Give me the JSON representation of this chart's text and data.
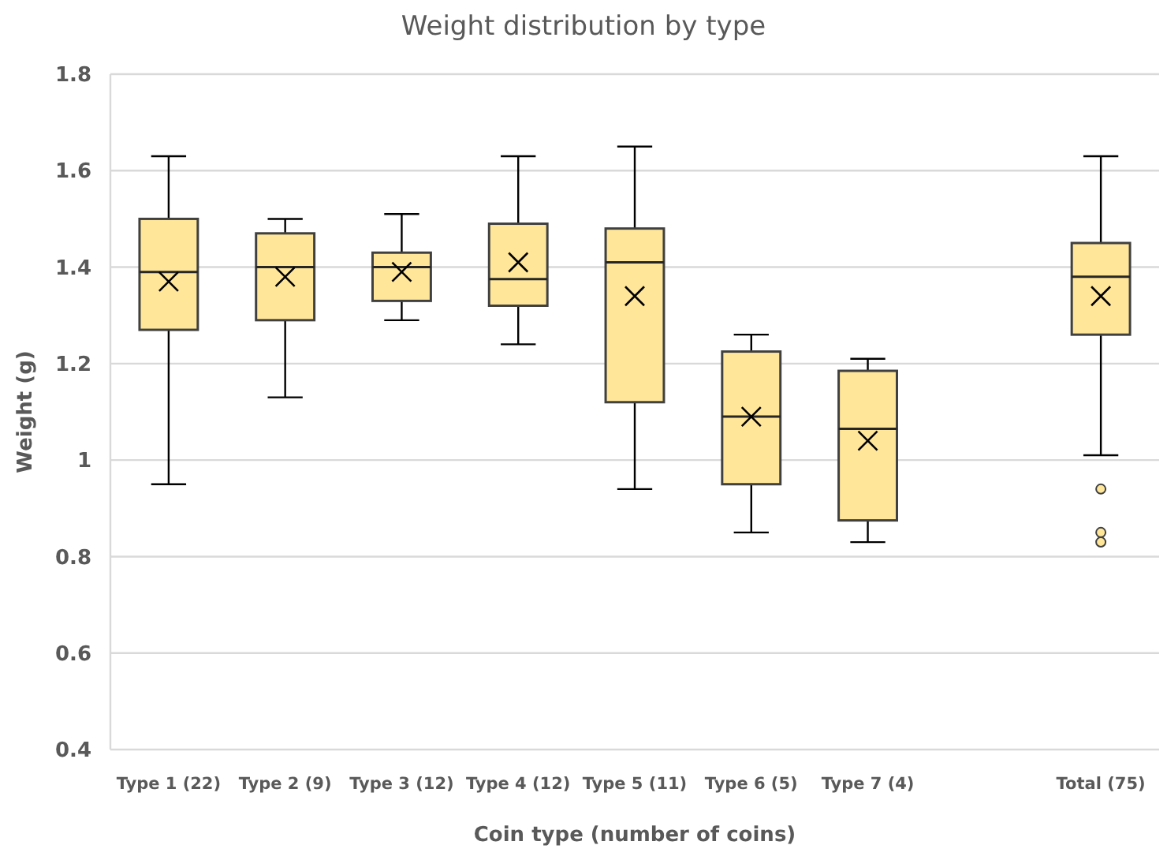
{
  "chart_data": {
    "type": "box",
    "title": "Weight distribution by type",
    "xlabel": "Coin type (number of coins)",
    "ylabel": "Weight (g)",
    "categories": [
      "Type 1 (22)",
      "Type 2 (9)",
      "Type 3 (12)",
      "Type 4 (12)",
      "Type 5 (11)",
      "Type 6 (5)",
      "Type 7 (4)",
      null,
      "Total (75)"
    ],
    "boxes": [
      {
        "low": 0.95,
        "q1": 1.27,
        "median": 1.39,
        "q3": 1.5,
        "high": 1.63,
        "mean": 1.37
      },
      {
        "low": 1.13,
        "q1": 1.29,
        "median": 1.4,
        "q3": 1.47,
        "high": 1.5,
        "mean": 1.38
      },
      {
        "low": 1.29,
        "q1": 1.33,
        "median": 1.4,
        "q3": 1.43,
        "high": 1.51,
        "mean": 1.39
      },
      {
        "low": 1.24,
        "q1": 1.32,
        "median": 1.375,
        "q3": 1.49,
        "high": 1.63,
        "mean": 1.41
      },
      {
        "low": 0.94,
        "q1": 1.12,
        "median": 1.41,
        "q3": 1.48,
        "high": 1.65,
        "mean": 1.34
      },
      {
        "low": 0.85,
        "q1": 0.95,
        "median": 1.09,
        "q3": 1.225,
        "high": 1.26,
        "mean": 1.09
      },
      {
        "low": 0.83,
        "q1": 0.875,
        "median": 1.065,
        "q3": 1.185,
        "high": 1.21,
        "mean": 1.04
      },
      null,
      {
        "low": 1.01,
        "q1": 1.26,
        "median": 1.38,
        "q3": 1.45,
        "high": 1.63,
        "mean": 1.34,
        "outliers": [
          0.94,
          0.85,
          0.83
        ]
      }
    ],
    "color": "#ffe699",
    "ylim": [
      0.4,
      1.8
    ],
    "yticks": [
      0.4,
      0.6,
      0.8,
      {
        "value": 1,
        "label": "1"
      },
      1.2,
      1.4,
      1.6,
      1.8
    ],
    "grid": "y"
  }
}
